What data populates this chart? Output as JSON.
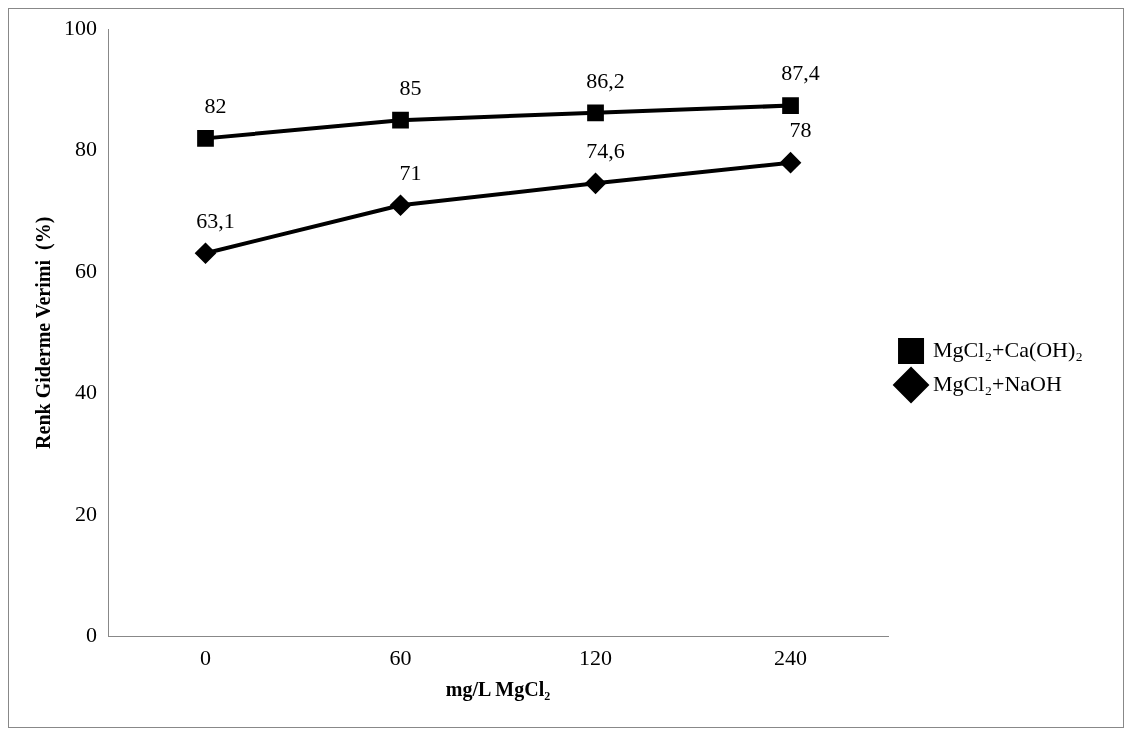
{
  "chart_data": {
    "type": "line",
    "xlabel": "mg/L MgCl₂",
    "ylabel": "Renk Giderme Verimi  (%)",
    "categories": [
      "0",
      "60",
      "120",
      "240"
    ],
    "series": [
      {
        "name": "MgCl₂+Ca(OH)₂",
        "color": "#000000",
        "marker": "square",
        "values": [
          82,
          85,
          86.2,
          87.4
        ],
        "value_labels": [
          "82",
          "85",
          "86,2",
          "87,4"
        ]
      },
      {
        "name": "MgCl₂+NaOH",
        "color": "#000000",
        "marker": "diamond",
        "values": [
          63.1,
          71,
          74.6,
          78
        ],
        "value_labels": [
          "63,1",
          "71",
          "74,6",
          "78"
        ]
      }
    ],
    "ylim": [
      0,
      100
    ],
    "yticks": [
      0,
      20,
      40,
      60,
      80,
      100
    ],
    "grid": false,
    "legend": "right",
    "line_style": "solid"
  }
}
